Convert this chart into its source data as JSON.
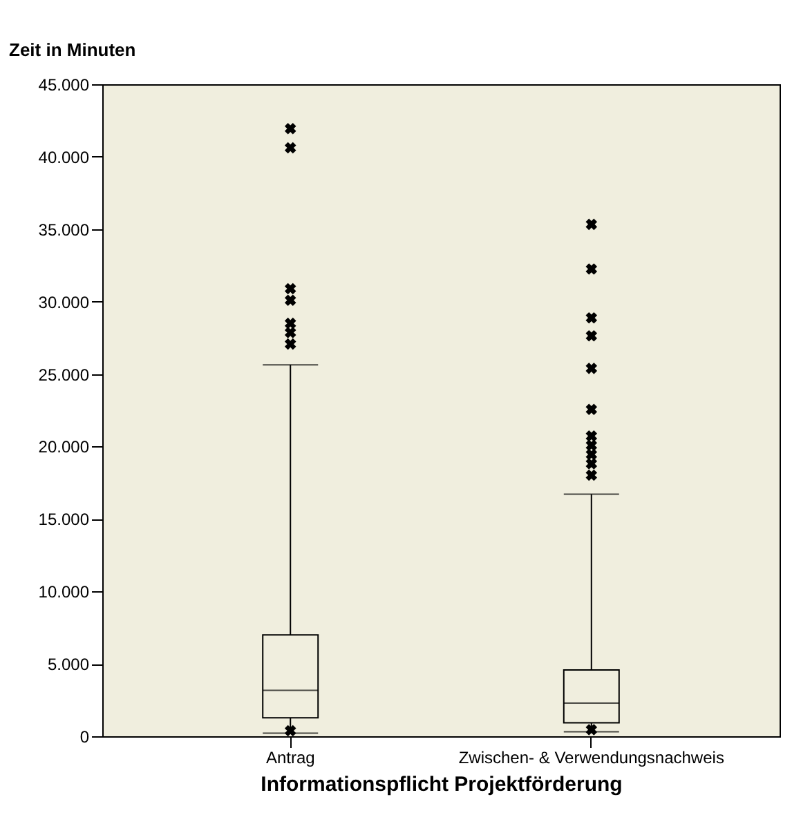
{
  "chart_data": {
    "type": "box",
    "ylabel": "Zeit in Minuten",
    "xlabel": "Informationspflicht Projektförderung",
    "categories": [
      "Antrag",
      "Zwischen- & Verwendungsnachweis"
    ],
    "boxes": [
      {
        "low": 220,
        "q1": 1270,
        "median": 3175,
        "q3": 6990,
        "high": 25640,
        "outliers": [
          380,
          27070,
          27860,
          28500,
          30090,
          30890,
          40610,
          41940
        ]
      },
      {
        "low": 315,
        "q1": 925,
        "median": 2290,
        "q3": 4575,
        "high": 16710,
        "outliers": [
          450,
          18020,
          18810,
          19450,
          20080,
          20720,
          22560,
          25390,
          27640,
          28880,
          32250,
          35330
        ]
      }
    ],
    "ylim": [
      0,
      45000
    ],
    "yticks": [
      {
        "value": 0,
        "label": "0"
      },
      {
        "value": 5000,
        "label": "5.000"
      },
      {
        "value": 10000,
        "label": "10.000"
      },
      {
        "value": 15000,
        "label": "15.000"
      },
      {
        "value": 20000,
        "label": "20.000"
      },
      {
        "value": 25000,
        "label": "25.000"
      },
      {
        "value": 30000,
        "label": "30.000"
      },
      {
        "value": 35000,
        "label": "35.000"
      },
      {
        "value": 40000,
        "label": "40.000"
      },
      {
        "value": 45000,
        "label": "45.000"
      }
    ],
    "marker": "cross",
    "grid": false
  }
}
